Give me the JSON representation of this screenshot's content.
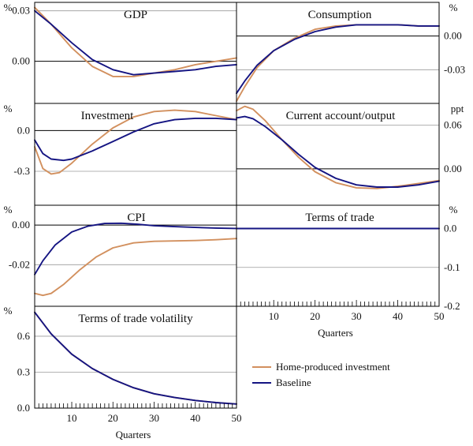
{
  "colors": {
    "home_produced": "#D2905E",
    "baseline": "#141482",
    "grid": "#9a9a9a",
    "axis": "#000000"
  },
  "legend": [
    {
      "label": "Home-produced investment",
      "color": "#D2905E"
    },
    {
      "label": "Baseline",
      "color": "#141482"
    }
  ],
  "chart_data": [
    {
      "type": "line",
      "title": "GDP",
      "ylabel": "%",
      "yaxis_side": "left",
      "xlim": [
        1,
        50
      ],
      "ylim": [
        -0.025,
        0.035
      ],
      "yticks": [
        0.03,
        0.0
      ],
      "ytick_labels": [
        "0.03",
        "0.00"
      ],
      "zero_line": 0.0,
      "series": [
        {
          "name": "Home-produced investment",
          "points": [
            [
              1,
              0.032
            ],
            [
              5,
              0.022
            ],
            [
              10,
              0.008
            ],
            [
              15,
              -0.003
            ],
            [
              20,
              -0.009
            ],
            [
              25,
              -0.009
            ],
            [
              30,
              -0.007
            ],
            [
              35,
              -0.005
            ],
            [
              40,
              -0.002
            ],
            [
              45,
              0.0
            ],
            [
              50,
              0.002
            ]
          ]
        },
        {
          "name": "Baseline",
          "points": [
            [
              1,
              0.03
            ],
            [
              5,
              0.022
            ],
            [
              10,
              0.011
            ],
            [
              15,
              0.001
            ],
            [
              20,
              -0.005
            ],
            [
              25,
              -0.008
            ],
            [
              30,
              -0.007
            ],
            [
              35,
              -0.006
            ],
            [
              40,
              -0.005
            ],
            [
              45,
              -0.003
            ],
            [
              50,
              -0.002
            ]
          ]
        }
      ]
    },
    {
      "type": "line",
      "title": "Consumption",
      "ylabel": "%",
      "yaxis_side": "right",
      "xlim": [
        1,
        50
      ],
      "ylim": [
        -0.06,
        0.03
      ],
      "yticks": [
        0.0,
        -0.03
      ],
      "ytick_labels": [
        "0.00",
        "-0.03"
      ],
      "zero_line": 0.0,
      "series": [
        {
          "name": "Home-produced investment",
          "points": [
            [
              1,
              -0.058
            ],
            [
              3,
              -0.045
            ],
            [
              6,
              -0.028
            ],
            [
              10,
              -0.013
            ],
            [
              15,
              -0.002
            ],
            [
              20,
              0.006
            ],
            [
              25,
              0.009
            ],
            [
              30,
              0.01
            ],
            [
              35,
              0.01
            ],
            [
              40,
              0.01
            ],
            [
              45,
              0.009
            ],
            [
              50,
              0.009
            ]
          ]
        },
        {
          "name": "Baseline",
          "points": [
            [
              1,
              -0.051
            ],
            [
              3,
              -0.04
            ],
            [
              6,
              -0.026
            ],
            [
              10,
              -0.013
            ],
            [
              15,
              -0.003
            ],
            [
              20,
              0.004
            ],
            [
              25,
              0.008
            ],
            [
              30,
              0.01
            ],
            [
              35,
              0.01
            ],
            [
              40,
              0.01
            ],
            [
              45,
              0.009
            ],
            [
              50,
              0.009
            ]
          ]
        }
      ]
    },
    {
      "type": "line",
      "title": "Investment",
      "ylabel": "%",
      "yaxis_side": "left",
      "xlim": [
        1,
        50
      ],
      "ylim": [
        -0.55,
        0.2
      ],
      "yticks": [
        0.0,
        -0.3
      ],
      "ytick_labels": [
        "0.0",
        "-0.3"
      ],
      "zero_line": 0.0,
      "series": [
        {
          "name": "Home-produced investment",
          "points": [
            [
              1,
              -0.12
            ],
            [
              3,
              -0.28
            ],
            [
              5,
              -0.32
            ],
            [
              7,
              -0.31
            ],
            [
              10,
              -0.24
            ],
            [
              15,
              -0.1
            ],
            [
              20,
              0.02
            ],
            [
              25,
              0.1
            ],
            [
              30,
              0.14
            ],
            [
              35,
              0.15
            ],
            [
              40,
              0.14
            ],
            [
              45,
              0.11
            ],
            [
              50,
              0.08
            ]
          ]
        },
        {
          "name": "Baseline",
          "points": [
            [
              1,
              -0.07
            ],
            [
              3,
              -0.17
            ],
            [
              5,
              -0.21
            ],
            [
              8,
              -0.22
            ],
            [
              10,
              -0.21
            ],
            [
              15,
              -0.15
            ],
            [
              20,
              -0.08
            ],
            [
              25,
              -0.01
            ],
            [
              30,
              0.05
            ],
            [
              35,
              0.08
            ],
            [
              40,
              0.09
            ],
            [
              45,
              0.09
            ],
            [
              50,
              0.08
            ]
          ]
        }
      ]
    },
    {
      "type": "line",
      "title": "Current account/output",
      "ylabel": "ppt",
      "yaxis_side": "right",
      "xlim": [
        1,
        50
      ],
      "ylim": [
        -0.05,
        0.09
      ],
      "yticks": [
        0.06,
        0.0
      ],
      "ytick_labels": [
        "0.06",
        "0.00"
      ],
      "zero_line": 0.0,
      "series": [
        {
          "name": "Home-produced investment",
          "points": [
            [
              1,
              0.08
            ],
            [
              3,
              0.086
            ],
            [
              5,
              0.082
            ],
            [
              8,
              0.066
            ],
            [
              12,
              0.04
            ],
            [
              16,
              0.016
            ],
            [
              20,
              -0.004
            ],
            [
              25,
              -0.019
            ],
            [
              30,
              -0.026
            ],
            [
              35,
              -0.027
            ],
            [
              40,
              -0.024
            ],
            [
              45,
              -0.02
            ],
            [
              50,
              -0.016
            ]
          ]
        },
        {
          "name": "Baseline",
          "points": [
            [
              1,
              0.07
            ],
            [
              3,
              0.072
            ],
            [
              5,
              0.069
            ],
            [
              8,
              0.058
            ],
            [
              12,
              0.04
            ],
            [
              16,
              0.02
            ],
            [
              20,
              0.002
            ],
            [
              25,
              -0.013
            ],
            [
              30,
              -0.022
            ],
            [
              35,
              -0.025
            ],
            [
              40,
              -0.025
            ],
            [
              45,
              -0.022
            ],
            [
              50,
              -0.017
            ]
          ]
        }
      ]
    },
    {
      "type": "line",
      "title": "CPI",
      "ylabel": "%",
      "yaxis_side": "left",
      "xlim": [
        1,
        50
      ],
      "ylim": [
        -0.041,
        0.01
      ],
      "yticks": [
        0.0,
        -0.02
      ],
      "ytick_labels": [
        "0.00",
        "-0.02"
      ],
      "zero_line": 0.0,
      "series": [
        {
          "name": "Home-produced investment",
          "points": [
            [
              1,
              -0.0345
            ],
            [
              3,
              -0.0355
            ],
            [
              5,
              -0.0345
            ],
            [
              8,
              -0.03
            ],
            [
              12,
              -0.0225
            ],
            [
              16,
              -0.016
            ],
            [
              20,
              -0.0115
            ],
            [
              25,
              -0.009
            ],
            [
              30,
              -0.0082
            ],
            [
              35,
              -0.008
            ],
            [
              40,
              -0.0078
            ],
            [
              45,
              -0.0074
            ],
            [
              50,
              -0.0068
            ]
          ]
        },
        {
          "name": "Baseline",
          "points": [
            [
              1,
              -0.025
            ],
            [
              3,
              -0.018
            ],
            [
              6,
              -0.01
            ],
            [
              10,
              -0.0035
            ],
            [
              14,
              -0.0005
            ],
            [
              18,
              0.0008
            ],
            [
              22,
              0.0009
            ],
            [
              26,
              0.0004
            ],
            [
              30,
              -0.0003
            ],
            [
              35,
              -0.0008
            ],
            [
              40,
              -0.0012
            ],
            [
              45,
              -0.0015
            ],
            [
              50,
              -0.0017
            ]
          ]
        }
      ]
    },
    {
      "type": "line",
      "title": "Terms of trade",
      "ylabel": "%",
      "yaxis_side": "right",
      "xlim": [
        1,
        50
      ],
      "ylim": [
        -0.2,
        0.06
      ],
      "yticks": [
        0.0,
        -0.1,
        -0.2
      ],
      "ytick_labels": [
        "0.0",
        "-0.1",
        "-0.2"
      ],
      "zero_line": 0.0,
      "xticks": [
        10,
        20,
        30,
        40,
        50
      ],
      "xtick_labels": [
        "10",
        "20",
        "30",
        "40",
        "50"
      ],
      "xlabel": "Quarters",
      "series": [
        {
          "name": "Home-produced investment",
          "points": [
            [
              1,
              0.0
            ],
            [
              50,
              0.0
            ]
          ]
        },
        {
          "name": "Baseline",
          "points": [
            [
              1,
              0.0
            ],
            [
              50,
              0.0
            ]
          ]
        }
      ]
    },
    {
      "type": "line",
      "title": "Terms of trade volatility",
      "ylabel": "%",
      "yaxis_side": "left",
      "xlim": [
        1,
        50
      ],
      "ylim": [
        0.0,
        0.85
      ],
      "yticks": [
        0.6,
        0.3,
        0.0
      ],
      "ytick_labels": [
        "0.6",
        "0.3",
        "0.0"
      ],
      "xticks": [
        10,
        20,
        30,
        40,
        50
      ],
      "xtick_labels": [
        "10",
        "20",
        "30",
        "40",
        "50"
      ],
      "xlabel": "Quarters",
      "series": [
        {
          "name": "Home-produced investment",
          "points": [
            [
              1,
              0.8
            ],
            [
              5,
              0.62
            ],
            [
              10,
              0.45
            ],
            [
              15,
              0.33
            ],
            [
              20,
              0.24
            ],
            [
              25,
              0.17
            ],
            [
              30,
              0.12
            ],
            [
              35,
              0.088
            ],
            [
              40,
              0.064
            ],
            [
              45,
              0.046
            ],
            [
              50,
              0.034
            ]
          ]
        },
        {
          "name": "Baseline",
          "points": [
            [
              1,
              0.8
            ],
            [
              5,
              0.62
            ],
            [
              10,
              0.45
            ],
            [
              15,
              0.33
            ],
            [
              20,
              0.24
            ],
            [
              25,
              0.17
            ],
            [
              30,
              0.12
            ],
            [
              35,
              0.088
            ],
            [
              40,
              0.064
            ],
            [
              45,
              0.046
            ],
            [
              50,
              0.034
            ]
          ]
        }
      ]
    }
  ]
}
